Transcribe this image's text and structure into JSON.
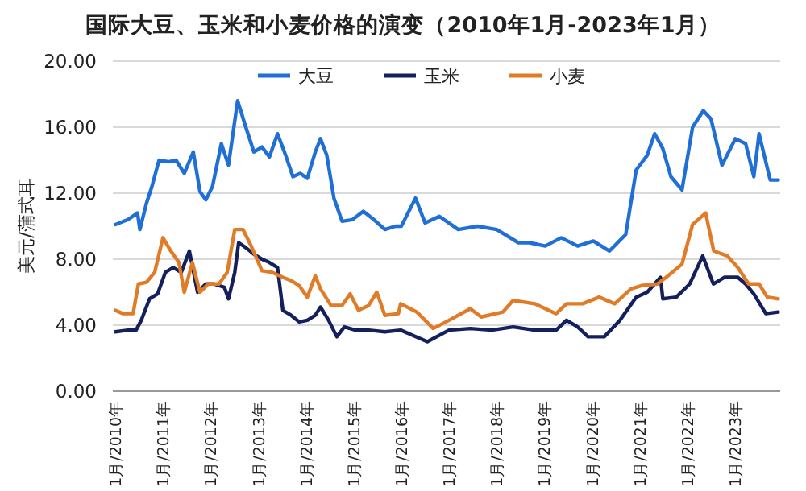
{
  "chart_data": {
    "type": "line",
    "title": "国际大豆、玉米和小麦价格的演变（2010年1月-2023年1月）",
    "ylabel": "美元/蒲式耳",
    "xlim": [
      "2009-12-13",
      "2023-12-13"
    ],
    "xticks": [
      {
        "value": "2010-01",
        "label": "1月/2010年"
      },
      {
        "value": "2011-01",
        "label": "1月/2011年"
      },
      {
        "value": "2012-01",
        "label": "1月/2012年"
      },
      {
        "value": "2013-01",
        "label": "1月/2013年"
      },
      {
        "value": "2014-01",
        "label": "1月/2014年"
      },
      {
        "value": "2015-01",
        "label": "1月/2015年"
      },
      {
        "value": "2016-01",
        "label": "1月/2016年"
      },
      {
        "value": "2017-01",
        "label": "1月/2017年"
      },
      {
        "value": "2018-01",
        "label": "1月/2018年"
      },
      {
        "value": "2019-01",
        "label": "1月/2019年"
      },
      {
        "value": "2020-01",
        "label": "1月/2020年"
      },
      {
        "value": "2021-01",
        "label": "1月/2021年"
      },
      {
        "value": "2022-01",
        "label": "1月/2022年"
      },
      {
        "value": "2023-01",
        "label": "1月/2023年"
      }
    ],
    "ylim": [
      0,
      20
    ],
    "yticks": [
      {
        "value": 0,
        "label": "0.00"
      },
      {
        "value": 4,
        "label": "4.00"
      },
      {
        "value": 8,
        "label": "8.00"
      },
      {
        "value": 12,
        "label": "12.00"
      },
      {
        "value": 16,
        "label": "16.00"
      },
      {
        "value": 20,
        "label": "20.00"
      }
    ],
    "grid": "y",
    "legend": "top",
    "marker": "none",
    "line_style": "solid",
    "series": [
      {
        "name": "大豆",
        "color": "#1f6fd6",
        "x": [
          "2010-01-01",
          "2010-04-08",
          "2010-06-20",
          "2010-07-08",
          "2010-08-28",
          "2010-10-08",
          "2010-12-02",
          "2011-02-10",
          "2011-04-11",
          "2011-06-13",
          "2011-08-21",
          "2011-10-11",
          "2011-11-25",
          "2012-01-15",
          "2012-03-23",
          "2012-05-17",
          "2012-07-26",
          "2012-09-27",
          "2012-11-28",
          "2013-01-29",
          "2013-03-27",
          "2013-05-28",
          "2013-07-29",
          "2013-09-23",
          "2013-11-17",
          "2014-01-11",
          "2014-03-13",
          "2014-04-22",
          "2014-06-09",
          "2014-08-03",
          "2014-10-04",
          "2014-12-23",
          "2015-03-16",
          "2015-06-05",
          "2015-08-28",
          "2015-11-17",
          "2016-01-01",
          "2016-04-19",
          "2016-07-01",
          "2016-10-19",
          "2017-03-13",
          "2017-08-07",
          "2018-01-01",
          "2018-06-16",
          "2018-09-09",
          "2019-01-08",
          "2019-05-10",
          "2019-09-13",
          "2020-01-11",
          "2020-05-14",
          "2020-09-16",
          "2020-12-05",
          "2021-02-28",
          "2021-04-26",
          "2021-06-27",
          "2021-08-28",
          "2021-11-21",
          "2022-02-10",
          "2022-05-03",
          "2022-07-01",
          "2022-09-23",
          "2023-01-04",
          "2023-03-23",
          "2023-05-25",
          "2023-07-04",
          "2023-09-27",
          "2023-11-28"
        ],
        "values": [
          10.1,
          10.4,
          10.8,
          9.8,
          11.4,
          12.4,
          14.0,
          13.9,
          14.0,
          13.2,
          14.5,
          12.1,
          11.6,
          12.4,
          15.0,
          13.7,
          17.6,
          16.0,
          14.5,
          14.8,
          14.2,
          15.6,
          14.3,
          13.0,
          13.2,
          12.9,
          14.5,
          15.3,
          14.3,
          11.7,
          10.3,
          10.4,
          10.9,
          10.4,
          9.8,
          10.0,
          10.0,
          11.7,
          10.2,
          10.6,
          9.8,
          10.0,
          9.8,
          9.0,
          9.0,
          8.8,
          9.3,
          8.8,
          9.1,
          8.5,
          9.5,
          13.4,
          14.3,
          15.6,
          14.7,
          13.0,
          12.2,
          16.0,
          17.0,
          16.5,
          13.7,
          15.3,
          15.0,
          13.0,
          15.6,
          12.8,
          12.8
        ]
      },
      {
        "name": "玉米",
        "color": "#14205e",
        "x": [
          "2010-01-01",
          "2010-04-08",
          "2010-06-09",
          "2010-07-19",
          "2010-09-20",
          "2010-11-21",
          "2011-01-19",
          "2011-03-20",
          "2011-05-21",
          "2011-07-22",
          "2011-09-23",
          "2011-11-25",
          "2012-01-26",
          "2012-04-15",
          "2012-05-17",
          "2012-07-04",
          "2012-08-03",
          "2012-09-27",
          "2012-11-28",
          "2013-01-29",
          "2013-03-27",
          "2013-05-28",
          "2013-07-08",
          "2013-09-09",
          "2013-11-10",
          "2014-01-11",
          "2014-03-13",
          "2014-04-22",
          "2014-06-23",
          "2014-08-25",
          "2014-10-22",
          "2015-01-15",
          "2015-04-26",
          "2015-08-28",
          "2015-12-27",
          "2016-07-19",
          "2017-01-01",
          "2017-06-13",
          "2017-11-25",
          "2018-05-07",
          "2018-10-19",
          "2019-04-01",
          "2019-06-20",
          "2019-09-13",
          "2019-12-02",
          "2020-04-04",
          "2020-08-03",
          "2020-12-05",
          "2021-02-28",
          "2021-06-09",
          "2021-06-27",
          "2021-10-08",
          "2022-01-19",
          "2022-04-29",
          "2022-07-19",
          "2022-10-11",
          "2023-01-22",
          "2023-03-23",
          "2023-05-25",
          "2023-08-25",
          "2023-11-28"
        ],
        "values": [
          3.6,
          3.7,
          3.7,
          4.3,
          5.6,
          5.9,
          7.2,
          7.5,
          7.2,
          8.5,
          6.0,
          6.5,
          6.5,
          6.3,
          5.6,
          7.2,
          9.0,
          8.7,
          8.3,
          8.0,
          7.8,
          7.5,
          4.9,
          4.6,
          4.2,
          4.3,
          4.6,
          5.1,
          4.3,
          3.3,
          3.9,
          3.7,
          3.7,
          3.6,
          3.7,
          3.0,
          3.7,
          3.8,
          3.7,
          3.9,
          3.7,
          3.7,
          4.3,
          3.9,
          3.3,
          3.3,
          4.3,
          5.7,
          6.0,
          6.9,
          5.6,
          5.7,
          6.5,
          8.2,
          6.5,
          6.9,
          6.9,
          6.5,
          5.9,
          4.7,
          4.8
        ]
      },
      {
        "name": "小麦",
        "color": "#e07b28",
        "x": [
          "2010-01-01",
          "2010-02-28",
          "2010-05-17",
          "2010-06-27",
          "2010-08-28",
          "2010-10-29",
          "2011-01-01",
          "2011-03-02",
          "2011-05-03",
          "2011-06-13",
          "2011-08-14",
          "2011-10-11",
          "2011-12-13",
          "2012-03-05",
          "2012-05-07",
          "2012-07-04",
          "2012-09-05",
          "2012-11-07",
          "2013-01-29",
          "2013-04-19",
          "2013-07-08",
          "2013-09-09",
          "2013-11-10",
          "2014-01-11",
          "2014-03-13",
          "2014-04-22",
          "2014-07-11",
          "2014-10-04",
          "2014-12-05",
          "2015-02-07",
          "2015-04-26",
          "2015-06-27",
          "2015-08-28",
          "2015-12-09",
          "2015-12-27",
          "2016-04-29",
          "2016-09-02",
          "2017-01-01",
          "2017-06-13",
          "2017-09-05",
          "2018-02-17",
          "2018-05-07",
          "2018-10-19",
          "2019-04-01",
          "2019-06-20",
          "2019-10-22",
          "2020-02-25",
          "2020-06-23",
          "2020-10-26",
          "2021-01-15",
          "2021-05-17",
          "2021-08-07",
          "2021-11-21",
          "2022-02-10",
          "2022-05-21",
          "2022-07-22",
          "2022-11-03",
          "2023-01-22",
          "2023-04-15",
          "2023-07-04",
          "2023-09-05",
          "2023-11-28"
        ],
        "values": [
          4.9,
          4.7,
          4.7,
          6.5,
          6.6,
          7.2,
          9.3,
          8.5,
          7.8,
          6.0,
          7.8,
          6.0,
          6.5,
          6.5,
          7.2,
          9.8,
          9.8,
          8.8,
          7.3,
          7.2,
          6.9,
          6.7,
          6.4,
          5.7,
          7.0,
          6.2,
          5.2,
          5.2,
          5.9,
          4.9,
          5.2,
          6.0,
          4.6,
          4.7,
          5.3,
          4.8,
          3.8,
          4.3,
          5.0,
          4.5,
          4.8,
          5.5,
          5.3,
          4.7,
          5.3,
          5.3,
          5.7,
          5.3,
          6.2,
          6.4,
          6.5,
          7.0,
          7.7,
          10.1,
          10.8,
          8.5,
          8.2,
          7.5,
          6.5,
          6.5,
          5.7,
          5.6
        ]
      }
    ]
  }
}
